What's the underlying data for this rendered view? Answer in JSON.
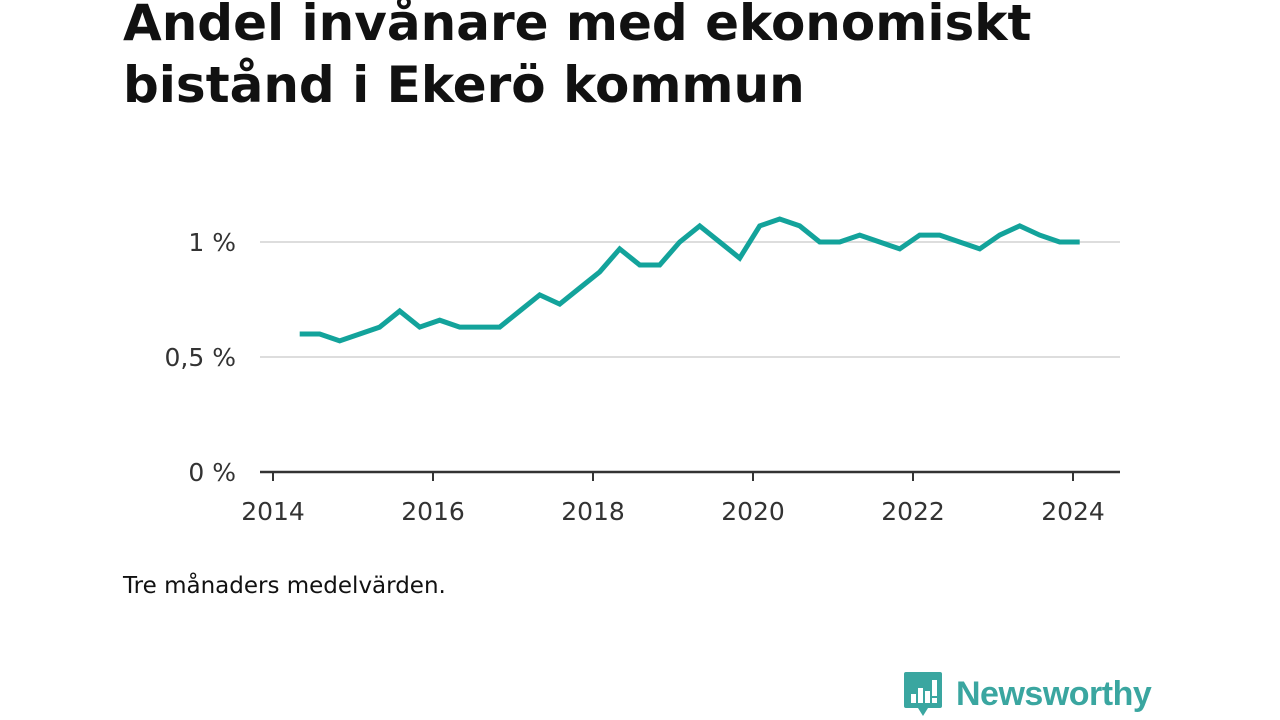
{
  "title": "Andel invånare med ekonomiskt bistånd i Ekerö kommun",
  "note": "Tre månaders medelvärden.",
  "brand": "Newsworthy",
  "colors": {
    "line": "#13a39b",
    "brand": "#3aa6a0"
  },
  "chart_data": {
    "type": "line",
    "title": "Andel invånare med ekonomiskt bistånd i Ekerö kommun",
    "xlabel": "",
    "ylabel": "",
    "y_unit": "%",
    "xlim": [
      "2014-01",
      "2024-12"
    ],
    "ylim": [
      0,
      1.13
    ],
    "x_ticks": [
      "2014",
      "2016",
      "2018",
      "2020",
      "2022",
      "2024"
    ],
    "y_ticks": [
      0,
      0.5,
      1
    ],
    "y_tick_labels": [
      "0 %",
      "0,5 %",
      "1 %"
    ],
    "grid": true,
    "series": [
      {
        "x": [
          "2014-05",
          "2014-08",
          "2014-11",
          "2015-02",
          "2015-05",
          "2015-08",
          "2015-11",
          "2016-02",
          "2016-05",
          "2016-08",
          "2016-11",
          "2017-02",
          "2017-05",
          "2017-08",
          "2017-11",
          "2018-02",
          "2018-05",
          "2018-08",
          "2018-11",
          "2019-02",
          "2019-05",
          "2019-08",
          "2019-11",
          "2020-02",
          "2020-05",
          "2020-08",
          "2020-11",
          "2021-02",
          "2021-05",
          "2021-08",
          "2021-11",
          "2022-02",
          "2022-05",
          "2022-08",
          "2022-11",
          "2023-02",
          "2023-05",
          "2023-08",
          "2023-11",
          "2024-02"
        ],
        "values": [
          0.6,
          0.6,
          0.57,
          0.6,
          0.63,
          0.7,
          0.63,
          0.66,
          0.63,
          0.63,
          0.63,
          0.7,
          0.77,
          0.73,
          0.8,
          0.87,
          0.97,
          0.9,
          0.9,
          1.0,
          1.07,
          1.0,
          0.93,
          1.07,
          1.1,
          1.07,
          1.0,
          1.0,
          1.03,
          1.0,
          0.97,
          1.03,
          1.03,
          1.0,
          0.97,
          1.03,
          1.07,
          1.03,
          1.0,
          1.0
        ]
      }
    ]
  }
}
